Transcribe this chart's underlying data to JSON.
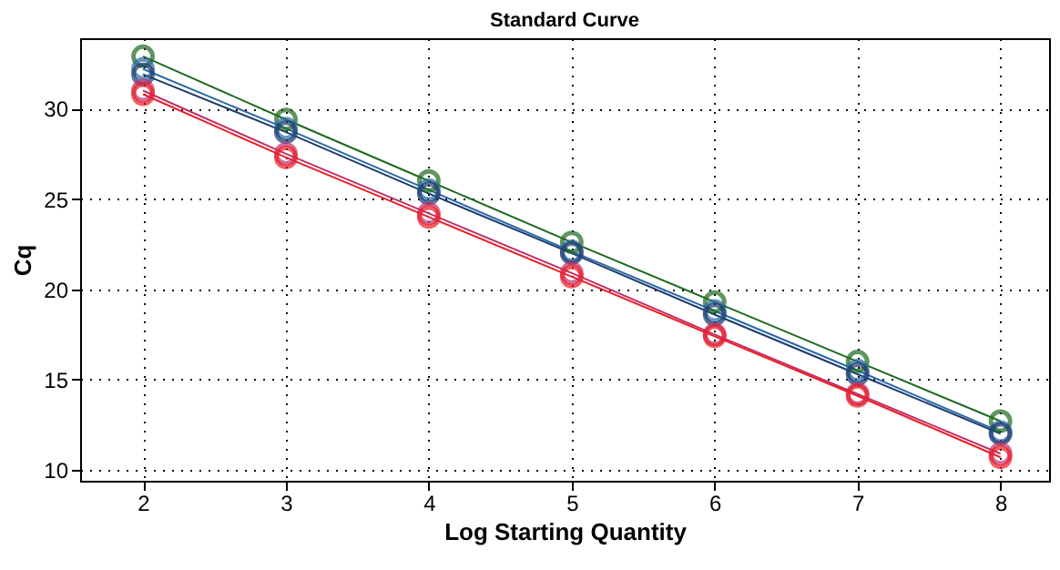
{
  "chart_data": {
    "type": "line",
    "title": "Standard Curve",
    "xlabel": "Log Starting Quantity",
    "ylabel": "Cq",
    "x": [
      2,
      3,
      4,
      5,
      6,
      7,
      8
    ],
    "series": [
      {
        "color": "#1e6b1e",
        "values": [
          32.9,
          29.4,
          26.0,
          22.6,
          19.3,
          16.0,
          12.7
        ]
      },
      {
        "color": "#2a6aa8",
        "values": [
          32.2,
          28.9,
          25.5,
          22.1,
          18.8,
          15.5,
          12.1
        ]
      },
      {
        "color": "#1e3a6e",
        "values": [
          31.9,
          28.7,
          25.3,
          22.0,
          18.6,
          15.3,
          12.0
        ]
      },
      {
        "color": "#c0306a",
        "values": [
          31.0,
          27.5,
          24.2,
          20.9,
          17.5,
          14.2,
          10.9
        ]
      },
      {
        "color": "#ee1c24",
        "values": [
          30.8,
          27.3,
          24.0,
          20.7,
          17.4,
          14.1,
          10.7
        ]
      }
    ],
    "xlim": [
      1.56,
      8.34
    ],
    "xticks": [
      2,
      3,
      4,
      5,
      6,
      7,
      8
    ],
    "ylim": [
      9.4,
      33.9
    ],
    "yticks": [
      10,
      15,
      20,
      25,
      30
    ],
    "grid": true,
    "legend": false,
    "marker": "circle",
    "line_style": "solid"
  }
}
